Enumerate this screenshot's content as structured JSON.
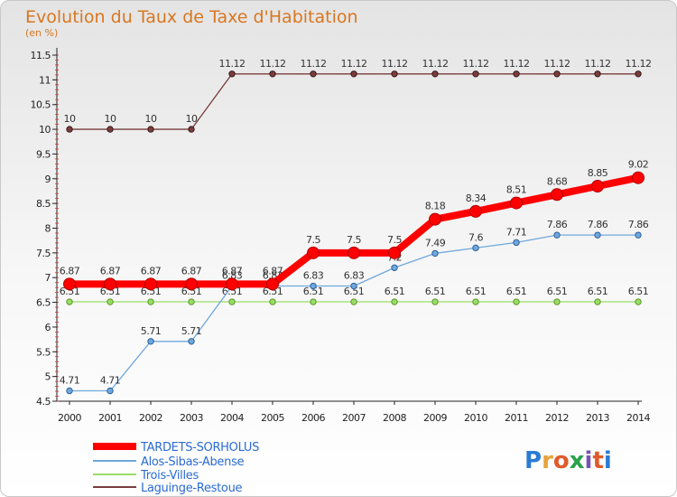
{
  "chart_data": {
    "type": "line",
    "title": "Evolution du Taux de Taxe d'Habitation",
    "subtitle": "(en %)",
    "x": [
      "2000",
      "2001",
      "2002",
      "2003",
      "2004",
      "2005",
      "2006",
      "2007",
      "2008",
      "2009",
      "2010",
      "2011",
      "2012",
      "2013",
      "2014"
    ],
    "ylim": [
      4.5,
      11.5
    ],
    "yticks": [
      "4.5",
      "5",
      "5.5",
      "6",
      "6.5",
      "7",
      "7.5",
      "8",
      "8.5",
      "9",
      "9.5",
      "10",
      "10.5",
      "11",
      "11.5"
    ],
    "grid": false,
    "legend_position": "bottom-left",
    "series": [
      {
        "name": "TARDETS-SORHOLUS",
        "color": "#ff0000",
        "values": [
          6.87,
          6.87,
          6.87,
          6.87,
          6.87,
          6.87,
          7.5,
          7.5,
          7.5,
          8.18,
          8.34,
          8.51,
          8.68,
          8.85,
          9.02
        ],
        "labels": [
          "6.87",
          "6.87",
          "6.87",
          "6.87",
          "6.87",
          "6.87",
          "7.5",
          "7.5",
          "7.5",
          "8.18",
          "8.34",
          "8.51",
          "8.68",
          "8.85",
          "9.02"
        ]
      },
      {
        "name": "Alos-Sibas-Abense",
        "color": "#6fa8dc",
        "values": [
          4.71,
          4.71,
          5.71,
          5.71,
          6.83,
          6.83,
          6.83,
          6.83,
          7.2,
          7.49,
          7.6,
          7.71,
          7.86,
          7.86,
          7.86
        ],
        "labels": [
          "4.71",
          "4.71",
          "5.71",
          "5.71",
          "6.83",
          "6.83",
          "6.83",
          "6.83",
          "7.2",
          "7.49",
          "7.6",
          "7.71",
          "7.86",
          "7.86",
          "7.86"
        ]
      },
      {
        "name": "Trois-Villes",
        "color": "#99dd66",
        "values": [
          6.51,
          6.51,
          6.51,
          6.51,
          6.51,
          6.51,
          6.51,
          6.51,
          6.51,
          6.51,
          6.51,
          6.51,
          6.51,
          6.51,
          6.51
        ],
        "labels": [
          "6.51",
          "6.51",
          "6.51",
          "6.51",
          "6.51",
          "6.51",
          "6.51",
          "6.51",
          "6.51",
          "6.51",
          "6.51",
          "6.51",
          "6.51",
          "6.51",
          "6.51"
        ]
      },
      {
        "name": "Laguinge-Restoue",
        "color": "#7a3d3d",
        "values": [
          10,
          10,
          10,
          10,
          11.12,
          11.12,
          11.12,
          11.12,
          11.12,
          11.12,
          11.12,
          11.12,
          11.12,
          11.12,
          11.12
        ],
        "labels": [
          "10",
          "10",
          "10",
          "10",
          "11.12",
          "11.12",
          "11.12",
          "11.12",
          "11.12",
          "11.12",
          "11.12",
          "11.12",
          "11.12",
          "11.12",
          "11.12"
        ]
      }
    ]
  },
  "logo": {
    "text": "Proxiti",
    "letters": [
      "P",
      "r",
      "o",
      "x",
      "i",
      "t",
      "i"
    ],
    "letter_colors": [
      "#2b7bd4",
      "#e8a23b",
      "#e05a2b",
      "#2aa24a",
      "#7a52b8",
      "#e05a2b",
      "#2b7bd4"
    ]
  }
}
